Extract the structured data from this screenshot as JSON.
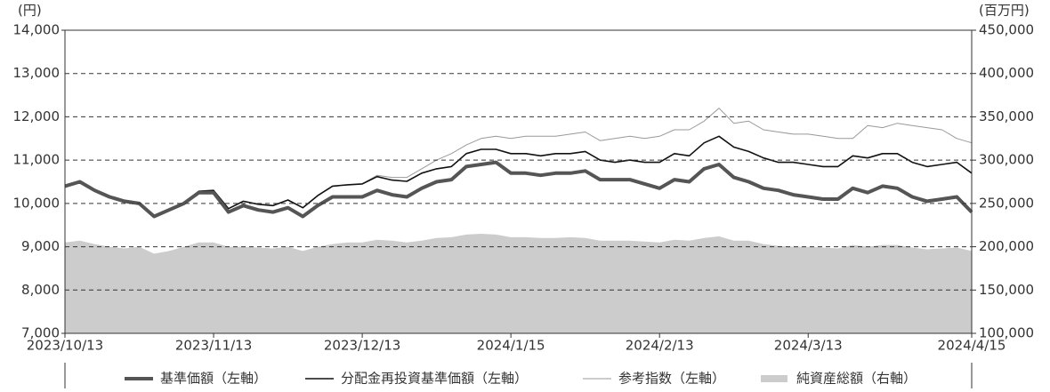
{
  "chart_data": {
    "type": "line",
    "y_unit": "(円)",
    "y2_unit": "(百万円)",
    "categories": [
      "2023/10/13",
      null,
      null,
      null,
      null,
      null,
      null,
      null,
      null,
      null,
      "2023/11/13",
      null,
      null,
      null,
      null,
      null,
      null,
      null,
      null,
      null,
      "2023/12/13",
      null,
      null,
      null,
      null,
      null,
      null,
      null,
      null,
      null,
      "2024/1/15",
      null,
      null,
      null,
      null,
      null,
      null,
      null,
      null,
      null,
      "2024/2/13",
      null,
      null,
      null,
      null,
      null,
      null,
      null,
      null,
      null,
      "2024/3/13",
      null,
      null,
      null,
      null,
      null,
      null,
      null,
      null,
      null,
      null,
      "2024/4/15"
    ],
    "ylim": [
      7000,
      14000
    ],
    "yticks": [
      {
        "value": 7000,
        "label": "7,000"
      },
      {
        "value": 8000,
        "label": "8,000"
      },
      {
        "value": 9000,
        "label": "9,000"
      },
      {
        "value": 10000,
        "label": "10,000"
      },
      {
        "value": 11000,
        "label": "11,000"
      },
      {
        "value": 12000,
        "label": "12,000"
      },
      {
        "value": 13000,
        "label": "13,000"
      },
      {
        "value": 14000,
        "label": "14,000"
      }
    ],
    "y2lim": [
      100000,
      450000
    ],
    "y2ticks": [
      {
        "value": 100000,
        "label": "100,000"
      },
      {
        "value": 150000,
        "label": "150,000"
      },
      {
        "value": 200000,
        "label": "200,000"
      },
      {
        "value": 250000,
        "label": "250,000"
      },
      {
        "value": 300000,
        "label": "300,000"
      },
      {
        "value": 350000,
        "label": "350,000"
      },
      {
        "value": 400000,
        "label": "400,000"
      },
      {
        "value": 450000,
        "label": "450,000"
      }
    ],
    "grid": true,
    "legend": "bottom",
    "series": [
      {
        "name": "純資産総額（右軸）",
        "color": "#cccccc",
        "style": "area",
        "axis": "y2",
        "values": [
          205000,
          207000,
          203000,
          200000,
          198000,
          200000,
          192000,
          195000,
          200000,
          205000,
          205000,
          200000,
          200000,
          199000,
          198000,
          200000,
          195000,
          200000,
          203000,
          205000,
          205000,
          208000,
          207000,
          205000,
          207000,
          210000,
          211000,
          214000,
          215000,
          214000,
          211000,
          211000,
          210000,
          210000,
          211000,
          210000,
          207000,
          207000,
          207000,
          206000,
          205000,
          208000,
          207000,
          210000,
          212000,
          207000,
          207000,
          203000,
          201000,
          200000,
          200000,
          199000,
          198000,
          202000,
          200000,
          202000,
          202000,
          199000,
          197000,
          198000,
          199000,
          195000
        ]
      },
      {
        "name": "参考指数（左軸）",
        "color": "#999999",
        "style": "line",
        "width": 1,
        "values": [
          10400,
          10500,
          10300,
          10150,
          10050,
          10000,
          9700,
          9850,
          10000,
          10280,
          10300,
          9880,
          10050,
          9980,
          9950,
          10080,
          9900,
          10180,
          10400,
          10430,
          10450,
          10650,
          10600,
          10600,
          10800,
          11000,
          11150,
          11350,
          11500,
          11550,
          11500,
          11550,
          11550,
          11550,
          11600,
          11650,
          11450,
          11500,
          11550,
          11500,
          11550,
          11700,
          11700,
          11900,
          12200,
          11850,
          11900,
          11700,
          11650,
          11600,
          11600,
          11550,
          11500,
          11500,
          11800,
          11750,
          11850,
          11800,
          11750,
          11700,
          11500,
          11400
        ]
      },
      {
        "name": "分配金再投資基準価額（左軸）",
        "color": "#111111",
        "style": "line",
        "width": 1.6,
        "values": [
          10400,
          10500,
          10300,
          10150,
          10050,
          10000,
          9700,
          9850,
          10000,
          10280,
          10300,
          9880,
          10050,
          9980,
          9950,
          10080,
          9900,
          10180,
          10400,
          10430,
          10450,
          10620,
          10540,
          10510,
          10700,
          10800,
          10850,
          11150,
          11250,
          11250,
          11150,
          11150,
          11100,
          11150,
          11150,
          11200,
          11000,
          10950,
          11000,
          10950,
          10950,
          11150,
          11100,
          11400,
          11550,
          11300,
          11200,
          11050,
          10950,
          10950,
          10900,
          10850,
          10850,
          11100,
          11050,
          11150,
          11150,
          10950,
          10850,
          10900,
          10950,
          10700
        ]
      },
      {
        "name": "基準価額（左軸）",
        "color": "#555555",
        "style": "line",
        "width": 4,
        "values": [
          10400,
          10500,
          10300,
          10150,
          10050,
          10000,
          9700,
          9850,
          10000,
          10250,
          10250,
          9800,
          9950,
          9850,
          9800,
          9900,
          9700,
          9950,
          10150,
          10150,
          10150,
          10300,
          10200,
          10150,
          10350,
          10500,
          10550,
          10850,
          10900,
          10950,
          10700,
          10700,
          10650,
          10700,
          10700,
          10750,
          10550,
          10550,
          10550,
          10450,
          10350,
          10550,
          10500,
          10800,
          10900,
          10600,
          10500,
          10350,
          10300,
          10200,
          10150,
          10100,
          10100,
          10350,
          10250,
          10400,
          10350,
          10150,
          10050,
          10100,
          10150,
          9800
        ]
      }
    ]
  }
}
